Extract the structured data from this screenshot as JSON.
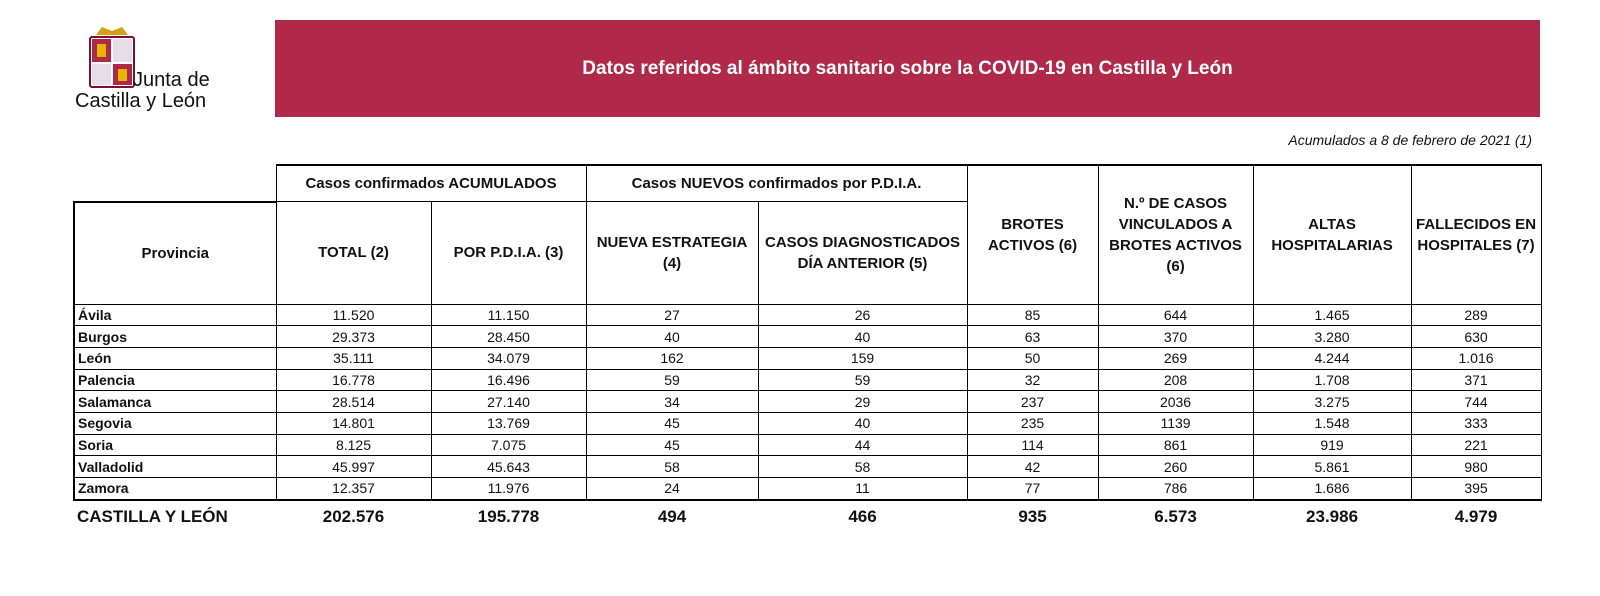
{
  "logo": {
    "line1": "Junta de",
    "line2": "Castilla y León"
  },
  "header": {
    "title": "Datos referidos al ámbito sanitario sobre la COVID-19 en Castilla y León"
  },
  "subtitle": "Acumulados a 8 de febrero de 2021 (1)",
  "table": {
    "group_headers": [
      "Casos confirmados ACUMULADOS",
      "Casos NUEVOS confirmados por P.D.I.A."
    ],
    "columns": [
      "Provincia",
      "TOTAL (2)",
      "POR P.D.I.A. (3)",
      "NUEVA ESTRATEGIA (4)",
      "CASOS DIAGNOSTICADOS DÍA ANTERIOR (5)",
      "BROTES ACTIVOS (6)",
      "N.º DE CASOS VINCULADOS A BROTES ACTIVOS (6)",
      "ALTAS HOSPITALARIAS",
      "FALLECIDOS EN HOSPITALES (7)"
    ],
    "rows": [
      [
        "Ávila",
        "11.520",
        "11.150",
        "27",
        "26",
        "85",
        "644",
        "1.465",
        "289"
      ],
      [
        "Burgos",
        "29.373",
        "28.450",
        "40",
        "40",
        "63",
        "370",
        "3.280",
        "630"
      ],
      [
        "León",
        "35.111",
        "34.079",
        "162",
        "159",
        "50",
        "269",
        "4.244",
        "1.016"
      ],
      [
        "Palencia",
        "16.778",
        "16.496",
        "59",
        "59",
        "32",
        "208",
        "1.708",
        "371"
      ],
      [
        "Salamanca",
        "28.514",
        "27.140",
        "34",
        "29",
        "237",
        "2036",
        "3.275",
        "744"
      ],
      [
        "Segovia",
        "14.801",
        "13.769",
        "45",
        "40",
        "235",
        "1139",
        "1.548",
        "333"
      ],
      [
        "Soria",
        "8.125",
        "7.075",
        "45",
        "44",
        "114",
        "861",
        "919",
        "221"
      ],
      [
        "Valladolid",
        "45.997",
        "45.643",
        "58",
        "58",
        "42",
        "260",
        "5.861",
        "980"
      ],
      [
        "Zamora",
        "12.357",
        "11.976",
        "24",
        "11",
        "77",
        "786",
        "1.686",
        "395"
      ]
    ],
    "total": [
      "CASTILLA Y LEÓN",
      "202.576",
      "195.778",
      "494",
      "466",
      "935",
      "6.573",
      "23.986",
      "4.979"
    ]
  }
}
